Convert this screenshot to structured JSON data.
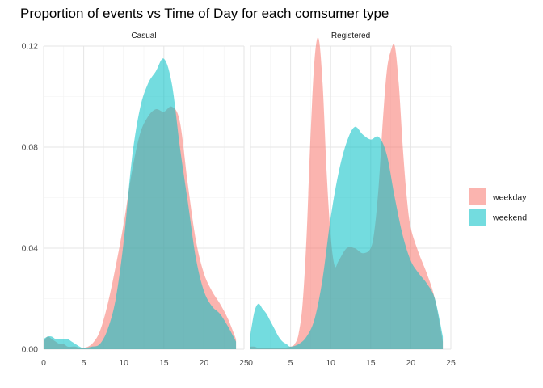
{
  "chart_data": {
    "type": "area",
    "title": "Proportion of events vs Time of Day for each comsumer type",
    "xlabel": "",
    "ylabel": "",
    "xlim": [
      0,
      25
    ],
    "ylim": [
      0,
      0.12
    ],
    "x_ticks": [
      0,
      5,
      10,
      15,
      20,
      25
    ],
    "y_ticks": [
      0.0,
      0.04,
      0.08,
      0.12
    ],
    "y_tick_labels": [
      "0.00",
      "0.04",
      "0.08",
      "0.12"
    ],
    "grid": true,
    "legend_position": "right",
    "colors": {
      "weekday": "#F8766D",
      "weekend": "#00BFC4"
    },
    "panels": [
      {
        "name": "Casual",
        "series": [
          {
            "name": "weekday",
            "x": [
              0,
              0.5,
              1,
              1.5,
              2,
              2.5,
              3,
              3.5,
              4,
              4.5,
              5,
              6,
              7,
              8,
              9,
              10,
              11,
              12,
              13,
              14,
              15,
              16,
              17,
              18,
              19,
              20,
              21,
              22,
              23,
              24
            ],
            "y": [
              0.003,
              0.005,
              0.004,
              0.003,
              0.002,
              0.002,
              0.001,
              0.001,
              0.001,
              0.0005,
              0.0005,
              0.002,
              0.007,
              0.018,
              0.033,
              0.05,
              0.07,
              0.085,
              0.092,
              0.095,
              0.094,
              0.096,
              0.09,
              0.065,
              0.043,
              0.03,
              0.023,
              0.018,
              0.012,
              0.004
            ]
          },
          {
            "name": "weekend",
            "x": [
              0,
              0.5,
              1,
              1.5,
              2,
              2.5,
              3,
              3.5,
              4,
              4.5,
              5,
              6,
              7,
              8,
              9,
              10,
              11,
              12,
              13,
              14,
              15,
              16,
              17,
              18,
              19,
              20,
              21,
              22,
              23,
              24
            ],
            "y": [
              0.004,
              0.005,
              0.005,
              0.004,
              0.004,
              0.004,
              0.004,
              0.003,
              0.002,
              0.001,
              0.0005,
              0.001,
              0.002,
              0.008,
              0.02,
              0.043,
              0.075,
              0.095,
              0.105,
              0.11,
              0.115,
              0.105,
              0.08,
              0.058,
              0.036,
              0.023,
              0.017,
              0.014,
              0.009,
              0.003
            ]
          }
        ]
      },
      {
        "name": "Registered",
        "series": [
          {
            "name": "weekday",
            "x": [
              0,
              0.5,
              1,
              2,
              3,
              4,
              5,
              5.5,
              6,
              6.5,
              7,
              7.5,
              8,
              8.5,
              9,
              9.5,
              10,
              10.5,
              11,
              12,
              13,
              14,
              15,
              15.5,
              16,
              16.5,
              17,
              17.5,
              18,
              18.5,
              19,
              19.5,
              20,
              21,
              22,
              23,
              24
            ],
            "y": [
              0.001,
              0.001,
              0.0005,
              0.0005,
              0.0005,
              0.0005,
              0.001,
              0.002,
              0.006,
              0.018,
              0.045,
              0.085,
              0.115,
              0.123,
              0.105,
              0.07,
              0.045,
              0.033,
              0.035,
              0.04,
              0.04,
              0.038,
              0.04,
              0.048,
              0.065,
              0.09,
              0.11,
              0.118,
              0.12,
              0.105,
              0.08,
              0.06,
              0.048,
              0.038,
              0.03,
              0.02,
              0.003
            ]
          },
          {
            "name": "weekend",
            "x": [
              0,
              0.5,
              1,
              1.5,
              2,
              2.5,
              3,
              3.5,
              4,
              4.5,
              5,
              6,
              7,
              8,
              9,
              10,
              11,
              12,
              13,
              14,
              15,
              16,
              17,
              18,
              19,
              20,
              21,
              22,
              23,
              24
            ],
            "y": [
              0.006,
              0.015,
              0.018,
              0.016,
              0.014,
              0.011,
              0.008,
              0.005,
              0.003,
              0.002,
              0.001,
              0.002,
              0.005,
              0.012,
              0.028,
              0.052,
              0.07,
              0.082,
              0.088,
              0.085,
              0.083,
              0.084,
              0.077,
              0.06,
              0.045,
              0.035,
              0.03,
              0.026,
              0.02,
              0.005
            ]
          }
        ]
      }
    ]
  }
}
